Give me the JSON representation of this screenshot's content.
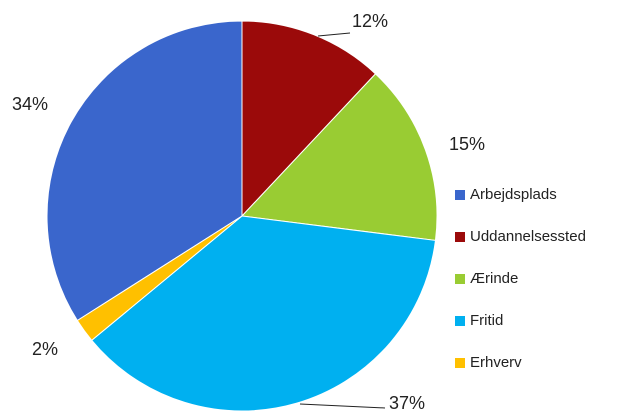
{
  "chart_data": {
    "type": "pie",
    "categories": [
      "Arbejdsplads",
      "Uddannelsessted",
      "Ærinde",
      "Fritid",
      "Erhverv"
    ],
    "values": [
      34,
      12,
      15,
      37,
      2
    ],
    "colors": [
      "#3a66cc",
      "#9b0a0a",
      "#99cc33",
      "#00b0f0",
      "#ffc000"
    ],
    "legend": "right"
  }
}
